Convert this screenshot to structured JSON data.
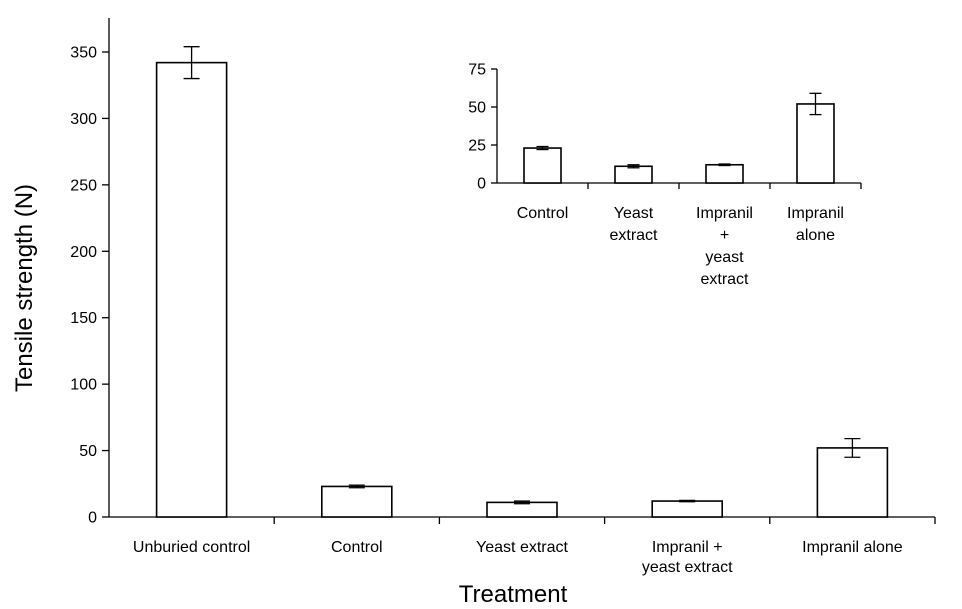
{
  "chart_data": [
    {
      "type": "bar",
      "title": "",
      "xlabel": "Treatment",
      "ylabel": "Tensile strength (N)",
      "ylim": [
        0,
        350
      ],
      "yticks": [
        0,
        50,
        100,
        150,
        200,
        250,
        300,
        350
      ],
      "categories": [
        [
          "Unburied control"
        ],
        [
          "Control"
        ],
        [
          "Yeast extract"
        ],
        [
          "Impranil +",
          "yeast extract"
        ],
        [
          "Impranil alone"
        ]
      ],
      "values": [
        342,
        23,
        11,
        12,
        52
      ],
      "errors": [
        12,
        1,
        1,
        0.5,
        7
      ],
      "grid": false
    },
    {
      "type": "bar",
      "title": "",
      "xlabel": "",
      "ylabel": "",
      "ylim": [
        0,
        75
      ],
      "yticks": [
        0,
        25,
        50,
        75
      ],
      "categories": [
        [
          "Control"
        ],
        [
          "Yeast",
          "extract"
        ],
        [
          "Impranil",
          "+",
          "yeast",
          "extract"
        ],
        [
          "Impranil",
          "alone"
        ]
      ],
      "values": [
        23,
        11,
        12,
        52
      ],
      "errors": [
        1,
        1,
        0.5,
        7
      ],
      "grid": false
    }
  ],
  "colors": {
    "bar_fill": "#ffffff",
    "stroke": "#000000"
  }
}
